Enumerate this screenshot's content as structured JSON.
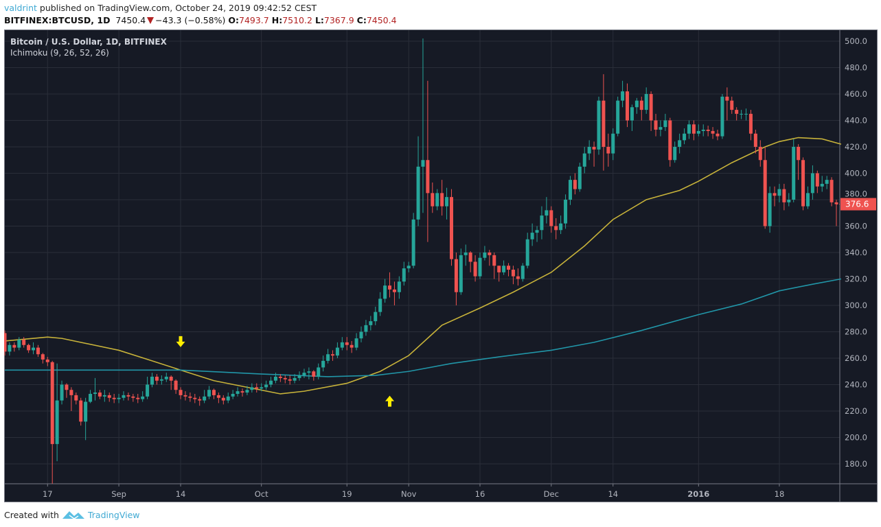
{
  "header": {
    "user": "valdrint",
    "published_text": "published on TradingView.com, October 24, 2019 09:42:52 CEST",
    "symbol": "BITFINEX:BTCUSD, 1D",
    "last": "7450.4",
    "change": "−43.3 (−0.58%)",
    "o_label": "O:",
    "o": "7493.7",
    "h_label": "H:",
    "h": "7510.2",
    "l_label": "L:",
    "l": "7367.9",
    "c_label": "C:",
    "c": "7450.4",
    "change_icon": "triangle-down-icon"
  },
  "legend": {
    "title": "Bitcoin / U.S. Dollar, 1D, BITFINEX",
    "indicator": "Ichimoku (9, 26, 52, 26)"
  },
  "footer": {
    "created_with": "Created with",
    "brand": "TradingView",
    "logo_icon": "tradingview-logo-icon"
  },
  "colors": {
    "background": "#161a25",
    "grid": "#2a2e39",
    "up": "#26a69a",
    "down": "#ef5350",
    "line_yellow": "#c8b33a",
    "line_cyan": "#2196a8",
    "arrow": "#ffee00",
    "price_tag": "#ef5350"
  },
  "chart_data": {
    "type": "candlestick",
    "interval": "1D",
    "start_date": "2015-08-08",
    "ylim": [
      170,
      508
    ],
    "grid": true,
    "y_ticks": [
      "180.0",
      "200.0",
      "220.0",
      "240.0",
      "260.0",
      "280.0",
      "300.0",
      "320.0",
      "340.0",
      "360.0",
      "380.0",
      "400.0",
      "420.0",
      "440.0",
      "460.0",
      "480.0",
      "500.0"
    ],
    "x_ticks": [
      {
        "date": "2015-08-17",
        "label": "17"
      },
      {
        "date": "2015-09-01",
        "label": "Sep"
      },
      {
        "date": "2015-09-14",
        "label": "14"
      },
      {
        "date": "2015-10-01",
        "label": "Oct"
      },
      {
        "date": "2015-10-19",
        "label": "19"
      },
      {
        "date": "2015-11-01",
        "label": "Nov"
      },
      {
        "date": "2015-11-16",
        "label": "16"
      },
      {
        "date": "2015-12-01",
        "label": "Dec"
      },
      {
        "date": "2015-12-14",
        "label": "14"
      },
      {
        "date": "2016-01-01",
        "label": "2016"
      },
      {
        "date": "2016-01-18",
        "label": "18"
      }
    ],
    "last_price_label": "376.6",
    "open": [
      279,
      265,
      270,
      268,
      274,
      270,
      266,
      268,
      263,
      259,
      257,
      195,
      228,
      240,
      236,
      232,
      228,
      212,
      227,
      233,
      234,
      231,
      232,
      230,
      229,
      230,
      232,
      231,
      230,
      229,
      231,
      240,
      246,
      243,
      244,
      246,
      243,
      236,
      232,
      231,
      230,
      229,
      228,
      231,
      236,
      232,
      230,
      228,
      231,
      233,
      235,
      234,
      236,
      238,
      237,
      238,
      240,
      243,
      246,
      245,
      244,
      243,
      245,
      247,
      249,
      250,
      246,
      253,
      258,
      263,
      262,
      268,
      272,
      270,
      268,
      275,
      280,
      285,
      288,
      295,
      305,
      315,
      312,
      310,
      318,
      328,
      330,
      365,
      405,
      410,
      385,
      375,
      385,
      375,
      382,
      335,
      310,
      338,
      340,
      333,
      322,
      336,
      340,
      338,
      330,
      325,
      330,
      327,
      322,
      320,
      330,
      350,
      355,
      357,
      368,
      372,
      360,
      357,
      362,
      380,
      395,
      388,
      405,
      415,
      420,
      418,
      455,
      420,
      415,
      430,
      455,
      462,
      440,
      450,
      455,
      448,
      460,
      440,
      433,
      435,
      440,
      410,
      420,
      425,
      430,
      437,
      430,
      432,
      433,
      432,
      430,
      428,
      458,
      455,
      448,
      445,
      445,
      445,
      430,
      420,
      410,
      360,
      385,
      383,
      388,
      378,
      380,
      420,
      410,
      375,
      385,
      400,
      390,
      392,
      395,
      378
    ],
    "high": [
      281,
      272,
      272,
      276,
      276,
      271,
      272,
      270,
      264,
      261,
      258,
      256,
      243,
      241,
      238,
      234,
      230,
      230,
      236,
      245,
      236,
      236,
      234,
      233,
      233,
      235,
      234,
      233,
      233,
      235,
      246,
      249,
      248,
      247,
      249,
      247,
      244,
      238,
      235,
      234,
      233,
      231,
      236,
      239,
      237,
      234,
      232,
      234,
      236,
      238,
      237,
      239,
      241,
      241,
      241,
      243,
      246,
      249,
      248,
      247,
      247,
      248,
      250,
      252,
      253,
      251,
      256,
      262,
      267,
      266,
      272,
      276,
      276,
      273,
      279,
      284,
      289,
      292,
      299,
      310,
      320,
      325,
      318,
      322,
      333,
      333,
      370,
      428,
      502,
      470,
      393,
      388,
      395,
      389,
      388,
      340,
      343,
      346,
      341,
      338,
      340,
      345,
      342,
      340,
      330,
      334,
      332,
      330,
      328,
      332,
      355,
      362,
      360,
      375,
      382,
      375,
      366,
      368,
      384,
      398,
      400,
      408,
      420,
      425,
      424,
      458,
      475,
      430,
      434,
      458,
      470,
      468,
      452,
      457,
      458,
      465,
      462,
      445,
      440,
      445,
      442,
      424,
      430,
      434,
      440,
      440,
      437,
      437,
      436,
      435,
      433,
      460,
      465,
      458,
      450,
      448,
      449,
      448,
      433,
      425,
      420,
      390,
      390,
      392,
      392,
      385,
      426,
      422,
      412,
      390,
      406,
      402,
      398,
      398,
      397,
      380
    ],
    "low": [
      262,
      262,
      265,
      266,
      268,
      264,
      263,
      261,
      256,
      254,
      165,
      182,
      225,
      230,
      220,
      225,
      209,
      198,
      226,
      228,
      229,
      227,
      227,
      226,
      226,
      228,
      228,
      227,
      226,
      227,
      229,
      238,
      240,
      240,
      242,
      236,
      233,
      229,
      228,
      227,
      226,
      224,
      226,
      229,
      229,
      226,
      225,
      226,
      229,
      231,
      231,
      232,
      234,
      234,
      235,
      236,
      238,
      241,
      242,
      241,
      240,
      241,
      243,
      245,
      244,
      243,
      244,
      250,
      256,
      258,
      260,
      266,
      266,
      264,
      266,
      272,
      277,
      281,
      285,
      292,
      302,
      306,
      300,
      305,
      315,
      325,
      328,
      360,
      370,
      348,
      370,
      372,
      368,
      365,
      330,
      300,
      308,
      330,
      325,
      318,
      320,
      334,
      330,
      320,
      318,
      323,
      322,
      316,
      315,
      318,
      328,
      345,
      348,
      350,
      362,
      355,
      350,
      354,
      358,
      376,
      384,
      386,
      400,
      410,
      405,
      414,
      402,
      405,
      410,
      428,
      450,
      435,
      432,
      445,
      440,
      445,
      432,
      428,
      428,
      432,
      405,
      408,
      415,
      422,
      426,
      425,
      428,
      428,
      428,
      426,
      425,
      426,
      440,
      445,
      440,
      441,
      440,
      425,
      415,
      405,
      358,
      355,
      375,
      378,
      372,
      375,
      378,
      395,
      372,
      373,
      380,
      385,
      386,
      388,
      375,
      360
    ],
    "close": [
      265,
      270,
      268,
      274,
      270,
      266,
      268,
      263,
      259,
      257,
      195,
      228,
      240,
      236,
      232,
      228,
      212,
      227,
      233,
      234,
      231,
      232,
      230,
      229,
      230,
      232,
      231,
      230,
      229,
      231,
      240,
      246,
      243,
      244,
      246,
      243,
      236,
      232,
      231,
      230,
      229,
      228,
      231,
      236,
      232,
      230,
      228,
      231,
      233,
      235,
      234,
      236,
      238,
      237,
      238,
      240,
      243,
      246,
      245,
      244,
      243,
      245,
      247,
      249,
      250,
      246,
      253,
      258,
      263,
      262,
      268,
      272,
      270,
      268,
      275,
      280,
      285,
      288,
      295,
      305,
      315,
      312,
      310,
      318,
      328,
      330,
      365,
      405,
      410,
      385,
      375,
      385,
      375,
      382,
      335,
      310,
      338,
      340,
      333,
      322,
      336,
      340,
      338,
      330,
      325,
      330,
      327,
      322,
      320,
      330,
      350,
      355,
      357,
      368,
      372,
      360,
      357,
      362,
      380,
      395,
      388,
      405,
      415,
      420,
      418,
      455,
      420,
      415,
      430,
      455,
      462,
      440,
      450,
      455,
      448,
      460,
      440,
      433,
      435,
      440,
      410,
      420,
      425,
      430,
      437,
      430,
      432,
      433,
      432,
      430,
      428,
      458,
      455,
      448,
      445,
      445,
      445,
      430,
      420,
      410,
      360,
      385,
      383,
      388,
      378,
      380,
      420,
      410,
      375,
      385,
      400,
      390,
      392,
      395,
      378,
      376.6
    ],
    "lines": [
      {
        "color_key": "line_yellow",
        "points": [
          [
            "2015-08-08",
            273
          ],
          [
            "2015-08-17",
            276
          ],
          [
            "2015-08-20",
            275
          ],
          [
            "2015-09-01",
            266
          ],
          [
            "2015-09-08",
            258
          ],
          [
            "2015-09-14",
            251
          ],
          [
            "2015-09-21",
            243
          ],
          [
            "2015-09-28",
            238
          ],
          [
            "2015-10-05",
            233
          ],
          [
            "2015-10-10",
            235
          ],
          [
            "2015-10-19",
            241
          ],
          [
            "2015-10-26",
            250
          ],
          [
            "2015-11-01",
            262
          ],
          [
            "2015-11-08",
            285
          ],
          [
            "2015-11-16",
            298
          ],
          [
            "2015-11-23",
            310
          ],
          [
            "2015-12-01",
            325
          ],
          [
            "2015-12-08",
            345
          ],
          [
            "2015-12-14",
            365
          ],
          [
            "2015-12-21",
            380
          ],
          [
            "2015-12-28",
            387
          ],
          [
            "2016-01-01",
            394
          ],
          [
            "2016-01-08",
            408
          ],
          [
            "2016-01-15",
            420
          ],
          [
            "2016-01-18",
            424
          ],
          [
            "2016-01-22",
            427
          ],
          [
            "2016-01-27",
            426
          ],
          [
            "2016-01-31",
            422
          ]
        ]
      },
      {
        "color_key": "line_cyan",
        "points": [
          [
            "2015-08-08",
            251
          ],
          [
            "2015-08-20",
            251
          ],
          [
            "2015-09-14",
            251
          ],
          [
            "2015-10-01",
            248
          ],
          [
            "2015-10-15",
            246
          ],
          [
            "2015-10-25",
            247
          ],
          [
            "2015-11-01",
            250
          ],
          [
            "2015-11-10",
            256
          ],
          [
            "2015-11-20",
            261
          ],
          [
            "2015-12-01",
            266
          ],
          [
            "2015-12-10",
            272
          ],
          [
            "2015-12-20",
            281
          ],
          [
            "2016-01-01",
            293
          ],
          [
            "2016-01-10",
            301
          ],
          [
            "2016-01-18",
            311
          ],
          [
            "2016-01-25",
            316
          ],
          [
            "2016-01-31",
            320
          ]
        ]
      }
    ],
    "annotations": [
      {
        "type": "arrow-down",
        "date": "2015-09-14",
        "price": 272
      },
      {
        "type": "arrow-up",
        "date": "2015-10-28",
        "price": 228
      }
    ]
  }
}
